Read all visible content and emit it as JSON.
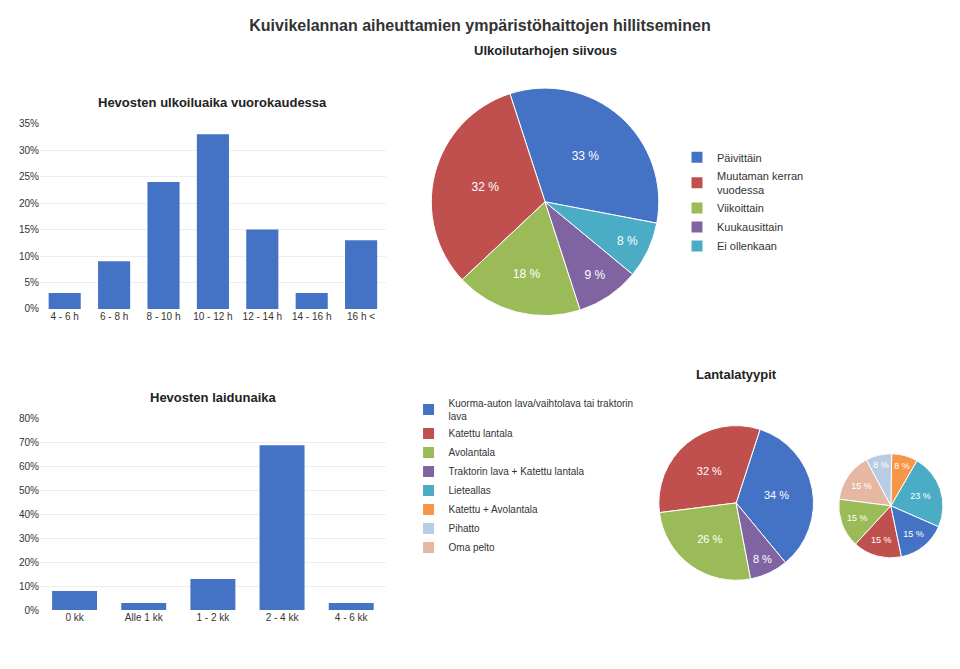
{
  "title": "Kuivikelannan aiheuttamien ympäristöhaittojen hillitseminen",
  "chart_data": [
    {
      "type": "bar",
      "title": "Hevosten ulkoiluaika vuorokaudessa",
      "categories": [
        "4 - 6 h",
        "6 - 8 h",
        "8 - 10 h",
        "10 - 12 h",
        "12 - 14 h",
        "14 - 16 h",
        "16 h <"
      ],
      "values": [
        3,
        9,
        24,
        33,
        15,
        3,
        13
      ],
      "color": "#4472C4",
      "ylim": [
        0,
        35
      ],
      "yticks": [
        {
          "value": 0,
          "label": "0%"
        },
        {
          "value": 5,
          "label": "5%"
        },
        {
          "value": 10,
          "label": "10%"
        },
        {
          "value": 15,
          "label": "15%"
        },
        {
          "value": 20,
          "label": "20%"
        },
        {
          "value": 25,
          "label": "25%"
        },
        {
          "value": 30,
          "label": "30%"
        },
        {
          "value": 35,
          "label": "35%"
        }
      ],
      "grid": true
    },
    {
      "type": "pie",
      "title": "Ulkoilutarhojen siivous",
      "categories": [
        "Päivittäin",
        "Muutaman kerran\nvuodessa",
        "Viikoittain",
        "Kuukausittain",
        "Ei ollenkaan"
      ],
      "values": [
        33,
        32,
        18,
        9,
        8
      ],
      "value_labels": [
        "33 %",
        "32 %",
        "18 %",
        "9 %",
        "8 %"
      ],
      "colors": [
        "#4472C4",
        "#C0504D",
        "#9BBB59",
        "#8064A2",
        "#4BACC6"
      ],
      "data_labels": true,
      "legend": "right"
    },
    {
      "type": "bar",
      "title": "Hevosten laidunaika",
      "categories": [
        "0 kk",
        "Alle 1 kk",
        "1 - 2 kk",
        "2 - 4 kk",
        "4 - 6 kk"
      ],
      "values": [
        8,
        3,
        13,
        69,
        3
      ],
      "color": "#4472C4",
      "ylim": [
        0,
        80
      ],
      "yticks": [
        {
          "value": 0,
          "label": "0%"
        },
        {
          "value": 10,
          "label": "10%"
        },
        {
          "value": 20,
          "label": "20%"
        },
        {
          "value": 30,
          "label": "30%"
        },
        {
          "value": 40,
          "label": "40%"
        },
        {
          "value": 50,
          "label": "50%"
        },
        {
          "value": 60,
          "label": "60%"
        },
        {
          "value": 70,
          "label": "70%"
        },
        {
          "value": 80,
          "label": "80%"
        }
      ],
      "grid": true
    },
    {
      "type": "pie",
      "title": "Lantalatyypit",
      "categories": [
        "Kuorma-auton lava/vaihtolava tai traktorin\nlava",
        "Katettu lantala",
        "Avolantala",
        "Traktorin lava + Katettu lantala"
      ],
      "values": [
        34,
        32,
        26,
        8
      ],
      "value_labels": [
        "34 %",
        "32 %",
        "26 %",
        "8 %"
      ],
      "colors": [
        "#4472C4",
        "#C0504D",
        "#9BBB59",
        "#8064A2"
      ],
      "data_labels": true,
      "legend": "left"
    },
    {
      "type": "pie",
      "categories": [
        "Lieteallas",
        "Katettu + Avolantala",
        "Pihatto",
        "Oma pelto",
        null,
        null,
        null
      ],
      "values": [
        23,
        8,
        8,
        15,
        15,
        15,
        15
      ],
      "value_labels": [
        "23 %",
        "8 %",
        "8 %",
        "15 %",
        "15 %",
        "15 %",
        "15 %"
      ],
      "colors": [
        "#4BACC6",
        "#F79646",
        "#B8CCE4",
        "#E6B8A2",
        "#9BBB59",
        "#C0504D",
        "#4472C4"
      ],
      "data_labels": true,
      "legend": "left"
    }
  ]
}
